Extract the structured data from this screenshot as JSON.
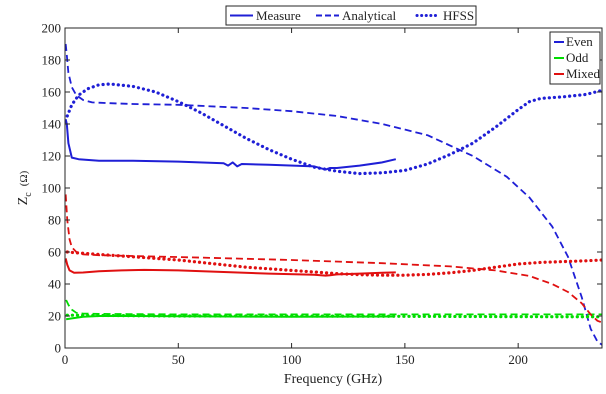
{
  "chart_data": {
    "type": "line",
    "xlabel": "Frequency (GHz)",
    "ylabel_main": "Z",
    "ylabel_sub": "c",
    "ylabel_unit": "(Ω)",
    "xlim": [
      0,
      237
    ],
    "ylim": [
      0,
      200
    ],
    "xticks": [
      0,
      50,
      100,
      150,
      200
    ],
    "yticks": [
      0,
      20,
      40,
      60,
      80,
      100,
      120,
      140,
      160,
      180,
      200
    ],
    "grid": false,
    "legend_method": {
      "placement": "top-center-outside",
      "entries": [
        {
          "label": "Measure",
          "style": "solid"
        },
        {
          "label": "Analytical",
          "style": "dashed"
        },
        {
          "label": "HFSS",
          "style": "dotted"
        }
      ]
    },
    "legend_mode": {
      "placement": "top-right",
      "entries": [
        {
          "label": "Even",
          "color": "#1f1fd6"
        },
        {
          "label": "Odd",
          "color": "#00dd00"
        },
        {
          "label": "Mixed",
          "color": "#e01010"
        }
      ]
    },
    "series": [
      {
        "name": "Even Measure",
        "mode": "Even",
        "method": "Measure",
        "color": "#1f1fd6",
        "x": [
          0.3,
          0.8,
          1.5,
          3,
          6,
          15,
          30,
          50,
          70,
          72,
          74,
          76,
          78,
          90,
          110,
          115,
          117,
          120,
          130,
          140,
          146
        ],
        "y": [
          143,
          140,
          128,
          119,
          118,
          117,
          117,
          116.5,
          115.5,
          114,
          116,
          113.5,
          115,
          114.5,
          113.5,
          111.5,
          112.5,
          112.5,
          114,
          116,
          118
        ]
      },
      {
        "name": "Even Analytical",
        "mode": "Even",
        "method": "Analytical",
        "color": "#1f1fd6",
        "x": [
          0.3,
          0.8,
          1.5,
          3,
          5,
          8,
          12,
          20,
          30,
          50,
          80,
          100,
          120,
          140,
          160,
          180,
          195,
          205,
          215,
          222,
          228,
          232,
          235,
          237
        ],
        "y": [
          190,
          183,
          172,
          163,
          158,
          155,
          153.5,
          153,
          152.5,
          152,
          150,
          148,
          145,
          140,
          133,
          120,
          107,
          94,
          76,
          57,
          32,
          12,
          4,
          2
        ]
      },
      {
        "name": "Even HFSS",
        "mode": "Even",
        "method": "HFSS",
        "color": "#1f1fd6",
        "x": [
          1,
          3,
          6,
          10,
          15,
          20,
          30,
          40,
          50,
          60,
          70,
          80,
          90,
          100,
          110,
          120,
          130,
          140,
          150,
          160,
          170,
          180,
          190,
          200,
          205,
          210,
          220,
          230,
          237
        ],
        "y": [
          145,
          152,
          158,
          162,
          164.5,
          165,
          163.5,
          160,
          154,
          147,
          139,
          131,
          124,
          118,
          113,
          110.5,
          109,
          109.5,
          111,
          115,
          121,
          128,
          138,
          149,
          154,
          156,
          157,
          158.5,
          161
        ]
      },
      {
        "name": "Odd Measure",
        "mode": "Odd",
        "method": "Measure",
        "color": "#00dd00",
        "x": [
          0.5,
          3,
          8,
          15,
          30,
          60,
          100,
          145
        ],
        "y": [
          18,
          18.5,
          19.5,
          20,
          20,
          19.8,
          19.5,
          19.7
        ]
      },
      {
        "name": "Odd Analytical",
        "mode": "Odd",
        "method": "Analytical",
        "color": "#00dd00",
        "x": [
          0.5,
          1.5,
          3,
          5,
          8,
          15,
          50,
          100,
          150,
          200,
          230,
          237
        ],
        "y": [
          30,
          27,
          24,
          22,
          21.5,
          21.3,
          21,
          21,
          21,
          21,
          21,
          21
        ]
      },
      {
        "name": "Odd HFSS",
        "mode": "Odd",
        "method": "HFSS",
        "color": "#00dd00",
        "x": [
          1,
          5,
          10,
          20,
          50,
          100,
          150,
          200,
          237
        ],
        "y": [
          20.5,
          20.5,
          20.3,
          20.3,
          20,
          20,
          19.8,
          19.6,
          19.5
        ]
      },
      {
        "name": "Mixed Measure",
        "mode": "Mixed",
        "method": "Measure",
        "color": "#e01010",
        "x": [
          0.3,
          1,
          2,
          4,
          8,
          15,
          25,
          35,
          50,
          70,
          90,
          110,
          115,
          117,
          120,
          130,
          140,
          146
        ],
        "y": [
          56,
          52,
          48.5,
          47,
          47.2,
          48,
          48.5,
          48.8,
          48.5,
          47.5,
          46.5,
          45.8,
          45.2,
          45.5,
          46,
          46.5,
          47,
          47.3
        ]
      },
      {
        "name": "Mixed Analytical",
        "mode": "Mixed",
        "method": "Analytical",
        "color": "#e01010",
        "x": [
          0.3,
          1,
          2,
          3,
          5,
          8,
          15,
          30,
          60,
          100,
          140,
          170,
          190,
          205,
          215,
          222,
          228,
          232,
          235,
          237
        ],
        "y": [
          96,
          80,
          68,
          63,
          60,
          58.5,
          58,
          57.5,
          56.5,
          55,
          53,
          51,
          48.5,
          45,
          40,
          35,
          28,
          21,
          17,
          16
        ]
      },
      {
        "name": "Mixed HFSS",
        "mode": "Mixed",
        "method": "HFSS",
        "color": "#e01010",
        "x": [
          1,
          5,
          10,
          20,
          30,
          40,
          50,
          60,
          70,
          80,
          90,
          100,
          110,
          120,
          130,
          140,
          150,
          160,
          170,
          180,
          190,
          200,
          210,
          220,
          230,
          237
        ],
        "y": [
          60,
          59.5,
          59,
          58,
          57,
          56,
          55,
          53.5,
          52,
          50.5,
          49.5,
          48.5,
          47.5,
          46.5,
          45.8,
          45.5,
          45.5,
          46,
          47,
          48.5,
          50.5,
          52.5,
          53.5,
          54,
          54.5,
          55
        ]
      }
    ]
  }
}
